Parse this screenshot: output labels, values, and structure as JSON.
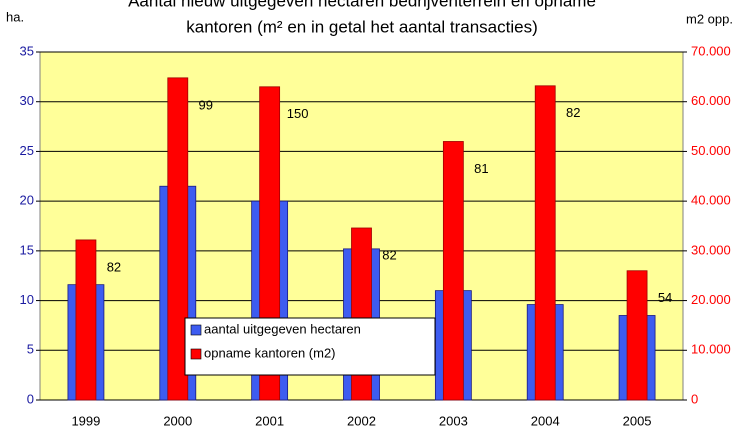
{
  "chart_data": {
    "type": "bar",
    "title": [
      "Aantal nieuw uitgegeven hectaren bedrijventerrein en opname",
      "kantoren (m² en in getal het aantal transacties)"
    ],
    "y_label": "ha.",
    "y2_label": "m2 opp.",
    "categories": [
      "1999",
      "2000",
      "2001",
      "2002",
      "2003",
      "2004",
      "2005"
    ],
    "series": [
      {
        "name": "aantal uitgegeven hectaren",
        "color": "#3d5cf0",
        "values": [
          11.6,
          21.5,
          20,
          15.2,
          11,
          9.6,
          8.5
        ]
      },
      {
        "name": "opname kantoren (m2)",
        "color": "#ff0000",
        "axis": "y2",
        "values": [
          32200,
          64800,
          63000,
          34600,
          52000,
          63200,
          26000
        ]
      }
    ],
    "annotations": [
      "82",
      "99",
      "150",
      "82",
      "81",
      "82",
      "54"
    ],
    "ylim": [
      0,
      35
    ],
    "yticks": [
      0,
      5,
      10,
      15,
      20,
      25,
      30,
      35
    ],
    "y2lim": [
      0,
      70000
    ],
    "y2ticks": [
      0,
      {
        "value": 10000,
        "label": "10.000"
      },
      {
        "value": 20000,
        "label": "20.000"
      },
      {
        "value": 30000,
        "label": "30.000"
      },
      {
        "value": 40000,
        "label": "40.000"
      },
      {
        "value": 50000,
        "label": "50.000"
      },
      {
        "value": 60000,
        "label": "60.000"
      },
      {
        "value": 70000,
        "label": "70.000"
      }
    ],
    "grid": true,
    "background": "#ffff99"
  }
}
